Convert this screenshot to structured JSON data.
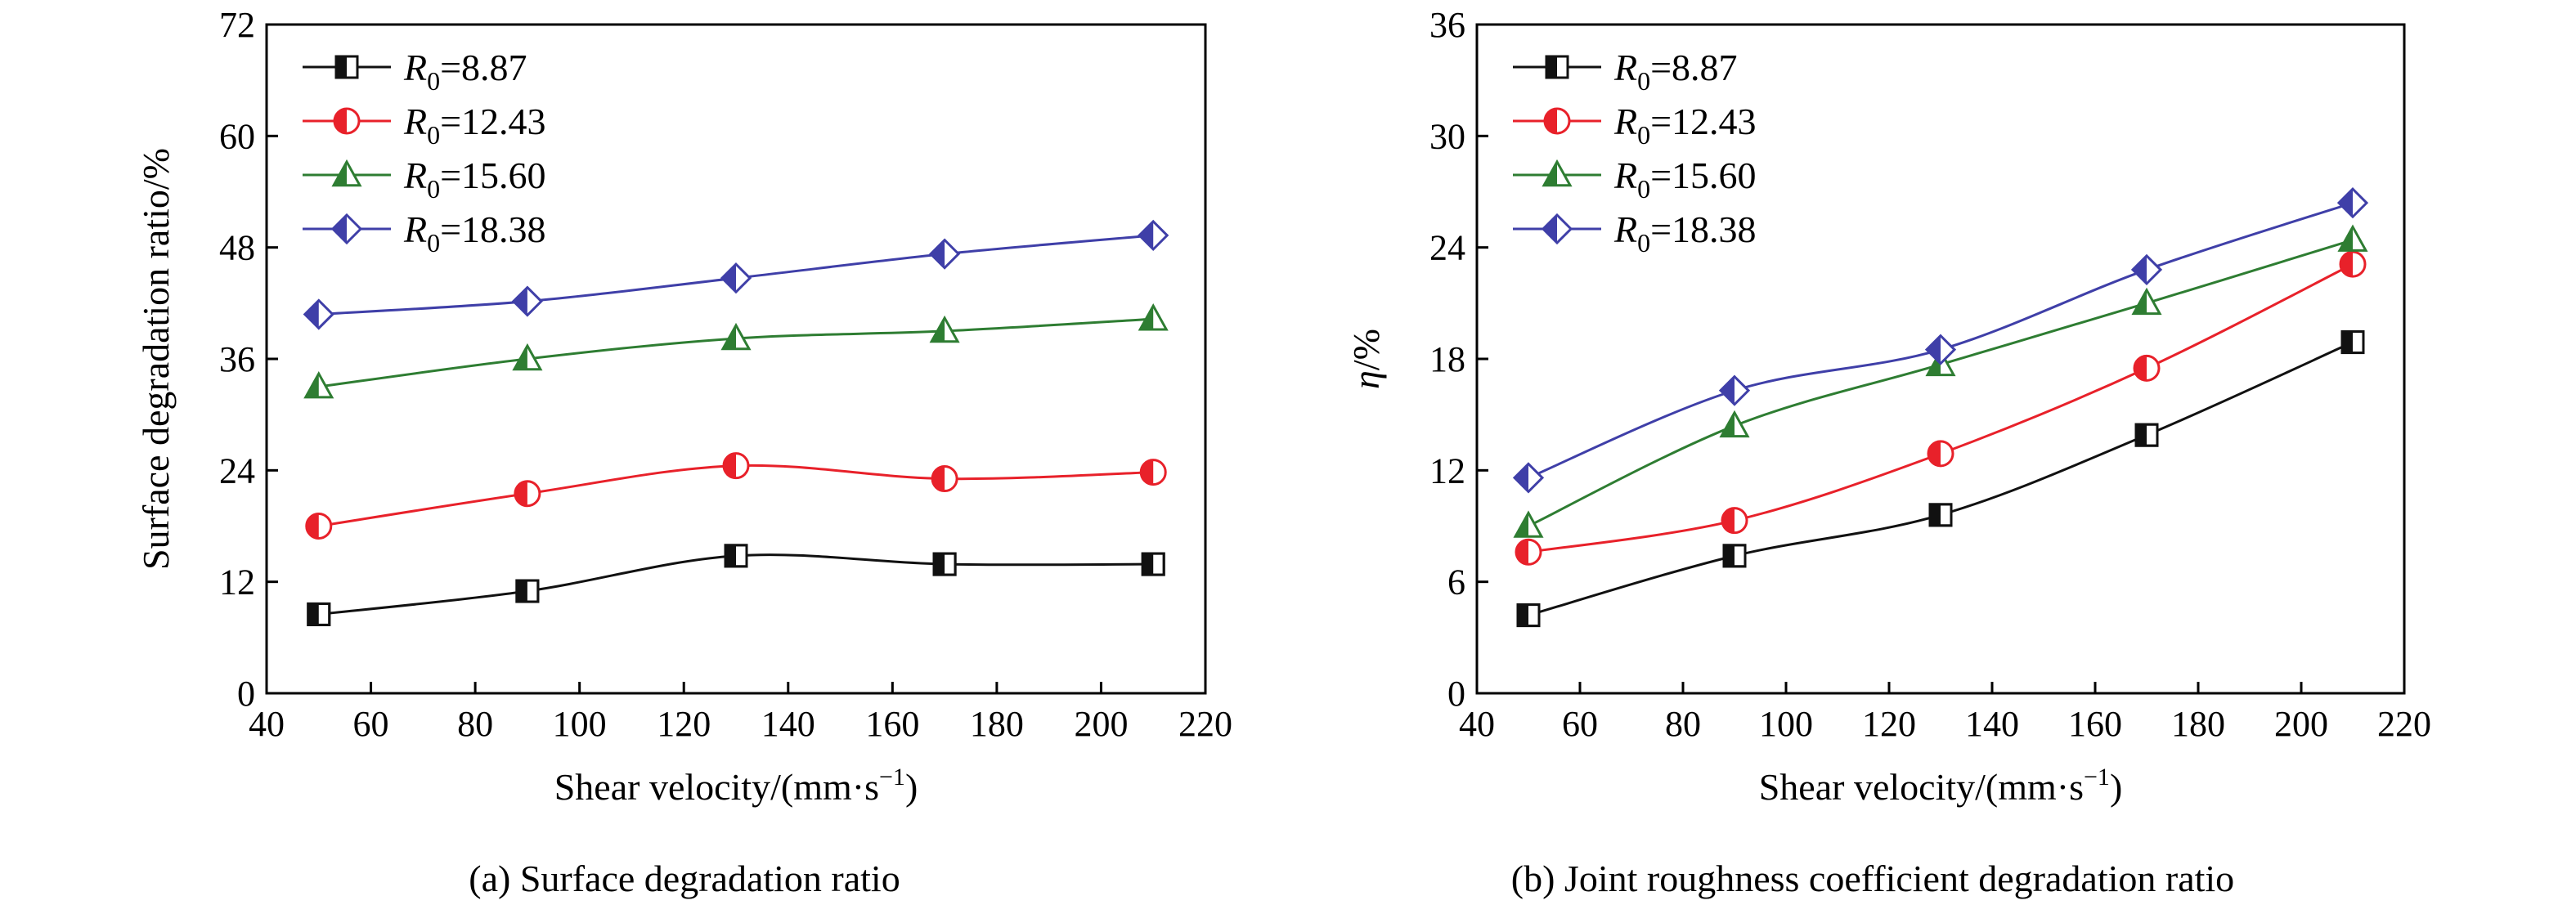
{
  "chart_data": [
    {
      "type": "line",
      "caption": "(a) Surface degradation ratio",
      "xlabel_main": "Shear velocity/(mm·s",
      "xlabel_sup": "−1",
      "xlabel_tail": ")",
      "ylabel": "Surface degradation ratio/%",
      "xlim": [
        40,
        220
      ],
      "ylim": [
        0,
        72
      ],
      "xticks": [
        40,
        60,
        80,
        100,
        120,
        140,
        160,
        180,
        200,
        220
      ],
      "yticks": [
        0,
        12,
        24,
        36,
        48,
        60,
        72
      ],
      "x": [
        50,
        90,
        130,
        170,
        210
      ],
      "legend_position": "top-left",
      "series": [
        {
          "name": "R0=8.87",
          "legend_sym": "R",
          "legend_sub": "0",
          "legend_val": "=8.87",
          "marker": "square",
          "color": "#111111",
          "values": [
            8.5,
            11.0,
            14.8,
            13.9,
            13.9
          ]
        },
        {
          "name": "R0=12.43",
          "legend_sym": "R",
          "legend_sub": "0",
          "legend_val": "=12.43",
          "marker": "circle",
          "color": "#e8212a",
          "values": [
            18.0,
            21.5,
            24.5,
            23.1,
            23.8
          ]
        },
        {
          "name": "R0=15.60",
          "legend_sym": "R",
          "legend_sub": "0",
          "legend_val": "=15.60",
          "marker": "triangle",
          "color": "#2e7d32",
          "values": [
            33.0,
            36.0,
            38.2,
            39.0,
            40.3
          ]
        },
        {
          "name": "R0=18.38",
          "legend_sym": "R",
          "legend_sub": "0",
          "legend_val": "=18.38",
          "marker": "diamond",
          "color": "#3f3fa8",
          "values": [
            40.8,
            42.2,
            44.7,
            47.3,
            49.3
          ]
        }
      ]
    },
    {
      "type": "line",
      "caption": "(b) Joint roughness coefficient degradation ratio",
      "xlabel_main": "Shear velocity/(mm·s",
      "xlabel_sup": "−1",
      "xlabel_tail": ")",
      "ylabel_sym": "η",
      "ylabel_tail": "/%",
      "xlim": [
        40,
        220
      ],
      "ylim": [
        0,
        36
      ],
      "xticks": [
        40,
        60,
        80,
        100,
        120,
        140,
        160,
        180,
        200,
        220
      ],
      "yticks": [
        0,
        6,
        12,
        18,
        24,
        30,
        36
      ],
      "x": [
        50,
        90,
        130,
        170,
        210
      ],
      "legend_position": "top-left",
      "series": [
        {
          "name": "R0=8.87",
          "legend_sym": "R",
          "legend_sub": "0",
          "legend_val": "=8.87",
          "marker": "square",
          "color": "#111111",
          "values": [
            4.2,
            7.4,
            9.6,
            13.9,
            18.9
          ]
        },
        {
          "name": "R0=12.43",
          "legend_sym": "R",
          "legend_sub": "0",
          "legend_val": "=12.43",
          "marker": "circle",
          "color": "#e8212a",
          "values": [
            7.6,
            9.3,
            12.9,
            17.5,
            23.1
          ]
        },
        {
          "name": "R0=15.60",
          "legend_sym": "R",
          "legend_sub": "0",
          "legend_val": "=15.60",
          "marker": "triangle",
          "color": "#2e7d32",
          "values": [
            9.0,
            14.4,
            17.7,
            21.0,
            24.4
          ]
        },
        {
          "name": "R0=18.38",
          "legend_sym": "R",
          "legend_sub": "0",
          "legend_val": "=18.38",
          "marker": "diamond",
          "color": "#3f3fa8",
          "values": [
            11.6,
            16.3,
            18.5,
            22.8,
            26.4
          ]
        }
      ]
    }
  ]
}
